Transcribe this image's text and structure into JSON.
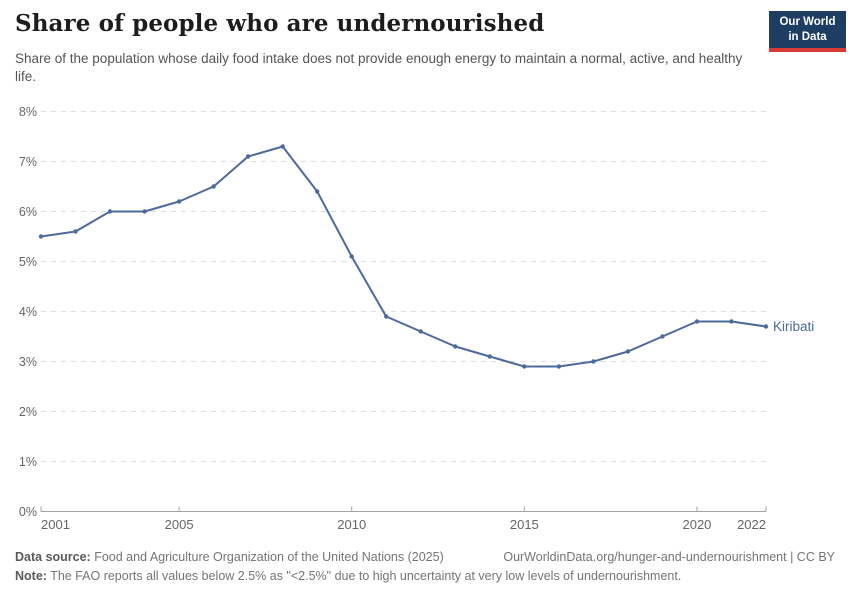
{
  "header": {
    "title": "Share of people who are undernourished",
    "subtitle": "Share of the population whose daily food intake does not provide enough energy to maintain a normal, active, and healthy life.",
    "logo": {
      "line1": "Our World",
      "line2": "in Data"
    }
  },
  "chart_data": {
    "type": "line",
    "title": "Share of people who are undernourished",
    "xlabel": "",
    "ylabel": "",
    "xlim": [
      2001,
      2022
    ],
    "ylim": [
      0,
      8
    ],
    "grid": "horizontal-dashed",
    "legend_position": "end-of-line-label",
    "x": [
      2001,
      2002,
      2003,
      2004,
      2005,
      2006,
      2007,
      2008,
      2009,
      2010,
      2011,
      2012,
      2013,
      2014,
      2015,
      2016,
      2017,
      2018,
      2019,
      2020,
      2021,
      2022
    ],
    "series": [
      {
        "name": "Kiribati",
        "color": "#4c6a9c",
        "values": [
          5.5,
          5.6,
          6.0,
          6.0,
          6.2,
          6.5,
          7.1,
          7.3,
          6.4,
          5.1,
          3.9,
          3.6,
          3.3,
          3.1,
          2.9,
          2.9,
          3.0,
          3.2,
          3.5,
          3.8,
          3.8,
          3.7
        ]
      }
    ],
    "x_ticks": [
      {
        "value": 2001,
        "label": "2001"
      },
      {
        "value": 2005,
        "label": "2005"
      },
      {
        "value": 2010,
        "label": "2010"
      },
      {
        "value": 2015,
        "label": "2015"
      },
      {
        "value": 2020,
        "label": "2020"
      },
      {
        "value": 2022,
        "label": "2022"
      }
    ],
    "y_ticks": [
      {
        "value": 0,
        "label": "0%"
      },
      {
        "value": 1,
        "label": "1%"
      },
      {
        "value": 2,
        "label": "2%"
      },
      {
        "value": 3,
        "label": "3%"
      },
      {
        "value": 4,
        "label": "4%"
      },
      {
        "value": 5,
        "label": "5%"
      },
      {
        "value": 6,
        "label": "6%"
      },
      {
        "value": 7,
        "label": "7%"
      },
      {
        "value": 8,
        "label": "8%"
      }
    ]
  },
  "footer": {
    "data_source_label": "Data source:",
    "data_source": "Food and Agriculture Organization of the United Nations (2025)",
    "link": "OurWorldinData.org/hunger-and-undernourishment | CC BY",
    "note_label": "Note:",
    "note": "The FAO reports all values below 2.5% as \"<2.5%\" due to high uncertainty at very low levels of undernourishment."
  },
  "colors": {
    "line": "#4c6a9c",
    "gridline": "#dddddd",
    "axis": "#a3a3a3",
    "tick_label": "#666666",
    "title": "#1d1d1d",
    "subtitle": "#555555",
    "footer_text": "#757575",
    "logo_background": "#1d3d63",
    "logo_accent": "#d93a34"
  }
}
